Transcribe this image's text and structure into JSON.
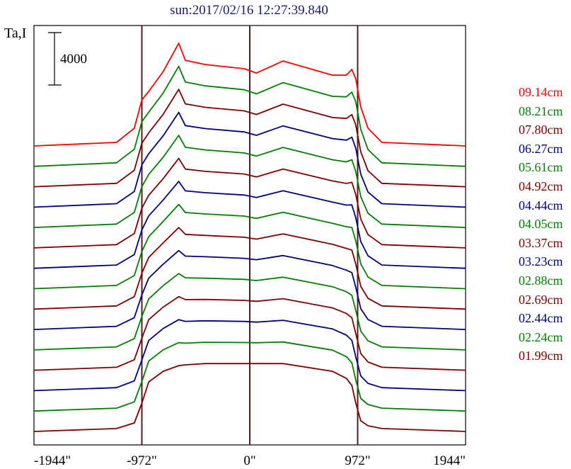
{
  "chart_data": {
    "type": "line",
    "title": "sun:2017/02/16 12:27:39.840",
    "ylabel": "Ta,I",
    "scale_bar_label": "4000",
    "scale_bar_value": 4000,
    "xlim": [
      -1944,
      1944
    ],
    "x_ticks": [
      -1944,
      -972,
      0,
      972,
      1944
    ],
    "x_tick_labels": [
      "-1944\"",
      "-972\"",
      "0\"",
      "972\"",
      "1944\""
    ],
    "reference_lines_x": [
      -972,
      0,
      972
    ],
    "grid": false,
    "legend_position": "right",
    "stack_offset": 1556,
    "x": [
      -1944,
      -1200,
      -1040,
      -972,
      -910,
      -780,
      -640,
      -580,
      -400,
      -50,
      60,
      300,
      745,
      870,
      920,
      955,
      1000,
      1065,
      1190,
      1944
    ],
    "series": [
      {
        "name": "09.14cm",
        "color": "#ff0000",
        "values": [
          0,
          270,
          1350,
          3510,
          4160,
          5670,
          7830,
          6530,
          6210,
          5890,
          5560,
          6480,
          5400,
          5400,
          5830,
          5130,
          2970,
          1350,
          270,
          0
        ]
      },
      {
        "name": "08.21cm",
        "color": "#008000",
        "values": [
          0,
          270,
          1300,
          3410,
          4130,
          5590,
          7630,
          6430,
          6140,
          5840,
          5530,
          6390,
          5340,
          5300,
          5660,
          4920,
          2820,
          1280,
          270,
          0
        ]
      },
      {
        "name": "07.80cm",
        "color": "#800000",
        "values": [
          0,
          260,
          1250,
          3320,
          4110,
          5520,
          7430,
          6320,
          6060,
          5790,
          5510,
          6300,
          5280,
          5210,
          5500,
          4710,
          2660,
          1220,
          260,
          0
        ]
      },
      {
        "name": "06.27cm",
        "color": "#000080",
        "values": [
          0,
          260,
          1200,
          3220,
          4080,
          5440,
          7230,
          6220,
          5990,
          5740,
          5480,
          6200,
          5230,
          5110,
          5330,
          4490,
          2510,
          1150,
          260,
          0
        ]
      },
      {
        "name": "05.61cm",
        "color": "#008000",
        "values": [
          0,
          260,
          1150,
          3120,
          4050,
          5360,
          7030,
          6120,
          5920,
          5690,
          5450,
          6110,
          5170,
          5010,
          5170,
          4280,
          2350,
          1090,
          260,
          0
        ]
      },
      {
        "name": "04.92cm",
        "color": "#800000",
        "values": [
          0,
          250,
          1100,
          3030,
          4020,
          5280,
          6830,
          6010,
          5840,
          5640,
          5420,
          6020,
          5110,
          4920,
          5000,
          4070,
          2200,
          1020,
          250,
          0
        ]
      },
      {
        "name": "04.44cm",
        "color": "#000080",
        "values": [
          0,
          250,
          1050,
          2930,
          4000,
          5210,
          6630,
          5910,
          5770,
          5590,
          5400,
          5920,
          5050,
          4820,
          4840,
          3860,
          2040,
          960,
          250,
          0
        ]
      },
      {
        "name": "04.05cm",
        "color": "#008000",
        "values": [
          0,
          250,
          1000,
          2840,
          3970,
          5130,
          6430,
          5810,
          5700,
          5540,
          5370,
          5830,
          4990,
          4730,
          4670,
          3650,
          1890,
          890,
          250,
          0
        ]
      },
      {
        "name": "03.37cm",
        "color": "#800000",
        "values": [
          0,
          240,
          950,
          2740,
          3940,
          5050,
          6220,
          5700,
          5620,
          5480,
          5340,
          5740,
          4940,
          4630,
          4500,
          3430,
          1740,
          820,
          240,
          0
        ]
      },
      {
        "name": "03.23cm",
        "color": "#000080",
        "values": [
          0,
          240,
          900,
          2640,
          3920,
          4980,
          6020,
          5600,
          5550,
          5430,
          5320,
          5640,
          4880,
          4530,
          4340,
          3220,
          1580,
          760,
          240,
          0
        ]
      },
      {
        "name": "02.88cm",
        "color": "#008000",
        "values": [
          0,
          230,
          850,
          2550,
          3890,
          4900,
          5820,
          5500,
          5470,
          5380,
          5290,
          5550,
          4820,
          4440,
          4170,
          3010,
          1430,
          690,
          230,
          0
        ]
      },
      {
        "name": "02.69cm",
        "color": "#800000",
        "values": [
          0,
          230,
          800,
          2450,
          3860,
          4820,
          5620,
          5390,
          5400,
          5330,
          5260,
          5460,
          4760,
          4340,
          4010,
          2800,
          1270,
          630,
          230,
          0
        ]
      },
      {
        "name": "02.44cm",
        "color": "#000080",
        "values": [
          0,
          230,
          750,
          2350,
          3830,
          4740,
          5420,
          5290,
          5330,
          5280,
          5230,
          5370,
          4710,
          4240,
          3840,
          2580,
          1120,
          560,
          230,
          0
        ]
      },
      {
        "name": "02.24cm",
        "color": "#008000",
        "values": [
          0,
          220,
          700,
          2260,
          3810,
          4670,
          5220,
          5180,
          5250,
          5230,
          5210,
          5270,
          4650,
          4150,
          3680,
          2370,
          960,
          500,
          220,
          0
        ]
      },
      {
        "name": "01.99cm",
        "color": "#800000",
        "values": [
          0,
          220,
          650,
          2160,
          3780,
          4590,
          5020,
          5080,
          5180,
          5180,
          5180,
          5180,
          4590,
          4050,
          3510,
          2160,
          810,
          430,
          220,
          0
        ]
      }
    ],
    "colors": {
      "title": "#1a1a6e",
      "frame": "#000000",
      "reference_line": "#4a2020"
    }
  }
}
